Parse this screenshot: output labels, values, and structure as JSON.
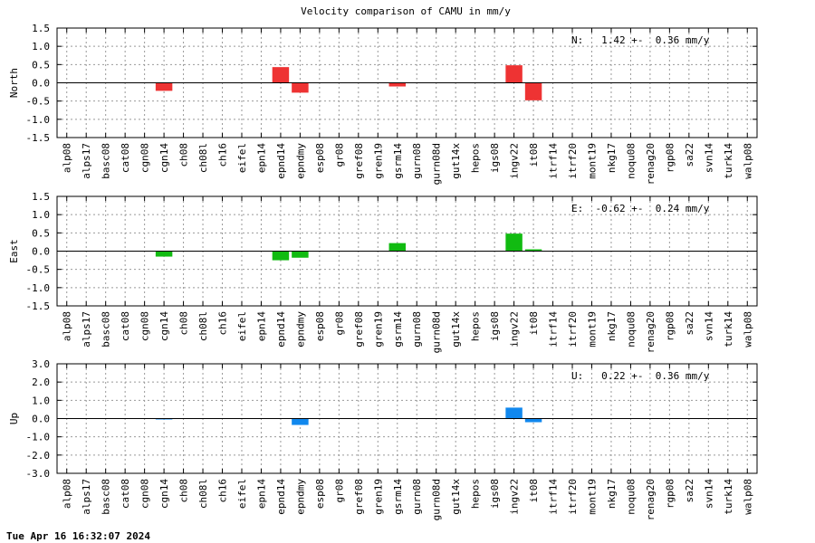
{
  "chart_data": {
    "type": "bar",
    "title": "Velocity comparison of CAMU in mm/y",
    "categories": [
      "alp08",
      "alps17",
      "basc08",
      "cat08",
      "cgn08",
      "cgn14",
      "ch08",
      "ch08l",
      "ch16",
      "eifel",
      "epn14",
      "epnd14",
      "epndmy",
      "esp08",
      "gr08",
      "gref08",
      "gren19",
      "gsrm14",
      "gurn08",
      "gurn08d",
      "gut14x",
      "hepos",
      "igs08",
      "ingv22",
      "it08",
      "itrf14",
      "itrf20",
      "mont19",
      "nkg17",
      "noqu08",
      "renag20",
      "rgp08",
      "sa22",
      "svn14",
      "turk14",
      "walp08"
    ],
    "grid": true,
    "panels": [
      {
        "id": "north",
        "ylabel": "North",
        "ylim": [
          -1.5,
          1.5
        ],
        "ticks": [
          "1.5",
          "1.0",
          "0.5",
          "0.0",
          "-0.5",
          "-1.0",
          "-1.5"
        ],
        "color": "#ee3333",
        "annotation": "N:   1.42 +-  0.36 mm/y",
        "values": {
          "cgn14": -0.22,
          "epnd14": 0.43,
          "epndmy": -0.27,
          "gsrm14": -0.1,
          "ingv22": 0.48,
          "it08": -0.48
        }
      },
      {
        "id": "east",
        "ylabel": "East",
        "ylim": [
          -1.5,
          1.5
        ],
        "ticks": [
          "1.5",
          "1.0",
          "0.5",
          "0.0",
          "-0.5",
          "-1.0",
          "-1.5"
        ],
        "color": "#11bb11",
        "annotation": "E:  -0.62 +-  0.24 mm/y",
        "values": {
          "cgn14": -0.15,
          "epnd14": -0.25,
          "epndmy": -0.18,
          "gsrm14": 0.22,
          "ingv22": 0.48,
          "it08": 0.05
        }
      },
      {
        "id": "up",
        "ylabel": "Up",
        "ylim": [
          -3.0,
          3.0
        ],
        "ticks": [
          "3.0",
          "2.0",
          "1.0",
          "0.0",
          "-1.0",
          "-2.0",
          "-3.0"
        ],
        "color": "#1188ee",
        "annotation": "U:   0.22 +-  0.36 mm/y",
        "values": {
          "cgn14": -0.05,
          "epndmy": -0.35,
          "ingv22": 0.6,
          "it08": -0.2
        }
      }
    ]
  },
  "footer": {
    "timestamp": "Tue Apr 16 16:32:07 2024"
  }
}
